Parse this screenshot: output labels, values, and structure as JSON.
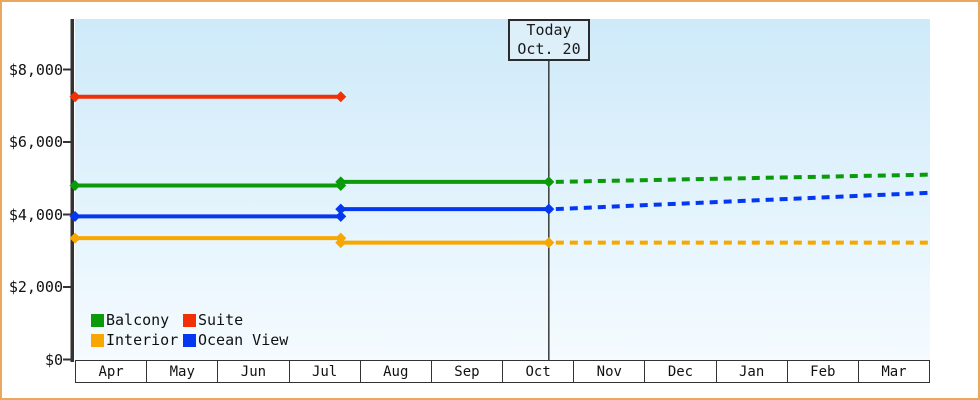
{
  "annotation": {
    "line1": "Today",
    "line2": "Oct. 20"
  },
  "axis": {
    "y_tick_labels": [
      "$0",
      "$2,000",
      "$4,000",
      "$6,000",
      "$8,000"
    ],
    "y_tick_values": [
      0,
      2000,
      4000,
      6000,
      8000
    ],
    "months": [
      "Apr",
      "May",
      "Jun",
      "Jul",
      "Aug",
      "Sep",
      "Oct",
      "Nov",
      "Dec",
      "Jan",
      "Feb",
      "Mar"
    ]
  },
  "legend": {
    "items": [
      {
        "label": "Balcony",
        "color": "#0A9A0A"
      },
      {
        "label": "Suite",
        "color": "#F23005"
      },
      {
        "label": "Interior",
        "color": "#F8A600"
      },
      {
        "label": "Ocean View",
        "color": "#0338F0"
      }
    ]
  },
  "colors": {
    "frame_border": "#E9A860",
    "plot_bg_top": "#CEEAF9",
    "plot_bg_bottom": "#F5FBFF",
    "axis": "#333333",
    "today_line": "#3a3a3a"
  },
  "chart_data": {
    "type": "line",
    "title": "",
    "xlabel": "",
    "ylabel": "",
    "x_categories": [
      "Apr",
      "May",
      "Jun",
      "Jul",
      "Aug",
      "Sep",
      "Oct",
      "Nov",
      "Dec",
      "Jan",
      "Feb",
      "Mar"
    ],
    "x_domain_note": "x in month units, Apr=0 through end of Mar=12",
    "ylim": [
      0,
      8000
    ],
    "y_ticks": [
      0,
      2000,
      4000,
      6000,
      8000
    ],
    "grid": false,
    "legend_position": "bottom-left inside plot",
    "today_marker": {
      "x": 6.65,
      "label": "Today Oct. 20"
    },
    "price_change_x": 3.73,
    "series": [
      {
        "name": "Balcony",
        "color": "#0A9A0A",
        "solid_segments": [
          [
            [
              0,
              4800
            ],
            [
              3.73,
              4800
            ]
          ],
          [
            [
              3.73,
              4900
            ],
            [
              6.65,
              4900
            ]
          ]
        ],
        "dashed_segments": [
          [
            [
              6.65,
              4900
            ],
            [
              12,
              5100
            ]
          ]
        ]
      },
      {
        "name": "Suite",
        "color": "#F23005",
        "solid_segments": [
          [
            [
              0,
              7250
            ],
            [
              3.73,
              7250
            ]
          ]
        ],
        "dashed_segments": []
      },
      {
        "name": "Interior",
        "color": "#F8A600",
        "solid_segments": [
          [
            [
              0,
              3350
            ],
            [
              3.73,
              3350
            ]
          ],
          [
            [
              3.73,
              3225
            ],
            [
              6.65,
              3225
            ]
          ]
        ],
        "dashed_segments": [
          [
            [
              6.65,
              3225
            ],
            [
              12,
              3225
            ]
          ]
        ]
      },
      {
        "name": "Ocean View",
        "color": "#0338F0",
        "solid_segments": [
          [
            [
              0,
              3950
            ],
            [
              3.73,
              3950
            ]
          ],
          [
            [
              3.73,
              4150
            ],
            [
              6.65,
              4150
            ]
          ]
        ],
        "dashed_segments": [
          [
            [
              6.65,
              4150
            ],
            [
              12,
              4600
            ]
          ]
        ]
      }
    ]
  }
}
